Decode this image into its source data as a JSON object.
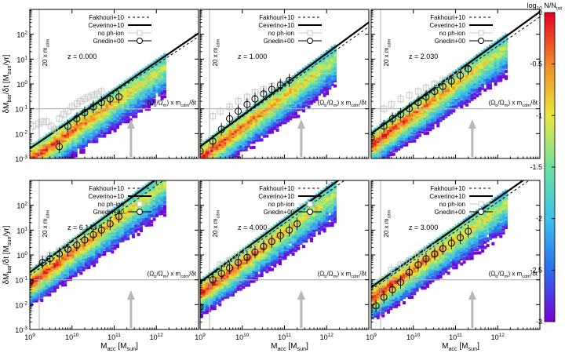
{
  "figure": {
    "xlabel": "M<sub>acc</sub> [M<sub>sun</sub>]",
    "ylabel": "δM<sub>bar</sub>/δt [M<sub>sun</sub>/yr]",
    "vline_label": "20 x m<sub>cdm</sub>",
    "hline_label": "(Ω<sub>b</sub>/Ω<sub>m</sub>) x m<sub>cdm</sub>/δt",
    "x_tick_labels": [
      "10^9",
      "10^10",
      "10^11",
      "10^12"
    ],
    "y_tick_labels": [
      "10^-3",
      "10^-2",
      "10^-1",
      "10^0",
      "10^1",
      "10^2"
    ],
    "xlim": [
      1000000000.0,
      10000000000000.0
    ],
    "ylim": [
      0.001,
      1000.0
    ],
    "xscale": "log",
    "yscale": "log"
  },
  "colorbar": {
    "title": "log<sub>10</sub> N/N<sub>tot</sub>",
    "ticks": [
      0,
      -0.5,
      -1,
      -1.5,
      -2,
      -2.5,
      -3
    ],
    "tick_labels": [
      "0",
      "-0.5",
      "-1",
      "-1.5",
      "-2",
      "-2.5",
      "-3"
    ],
    "range": [
      -3,
      0
    ],
    "colors": [
      "#7b00d6",
      "#2a6df0",
      "#3cc2e8",
      "#6fe0a0",
      "#e8e83a",
      "#f08a2a",
      "#e6001e"
    ]
  },
  "legend": [
    {
      "label": "Fakhouri+10",
      "style": "dashed"
    },
    {
      "label": "Ceverino+10",
      "style": "solid-thick"
    },
    {
      "label": "no ph-ion",
      "style": "open-square-grey"
    },
    {
      "label": "Gnedin+00",
      "style": "open-circle-errorbar"
    }
  ],
  "chart_data": [
    {
      "type": "heatmap",
      "redshift_label": "z = 0.000",
      "fakhouri": {
        "x": [
          1000000000.0,
          10000000000000.0
        ],
        "y": [
          0.0025,
          80
        ]
      },
      "ceverino": {
        "x": [
          1000000000.0,
          10000000000000.0
        ],
        "y": [
          0.0025,
          110
        ]
      },
      "hline_y": 0.1,
      "vline_x": 250000000000.0,
      "no_phion": {
        "x": [
          1200000000.0,
          1600000000.0,
          2000000000.0,
          2500000000.0,
          3200000000.0,
          4000000000.0,
          5000000000.0,
          6300000000.0,
          8000000000.0,
          10000000000.0,
          13000000000.0,
          16000000000.0,
          20000000000.0,
          25000000000.0,
          32000000000.0,
          40000000000.0,
          50000000000.0
        ],
        "y": [
          0.02,
          0.025,
          0.03,
          0.03,
          0.02,
          0.015,
          0.04,
          0.06,
          0.08,
          0.12,
          0.16,
          0.2,
          0.25,
          0.3,
          0.35,
          0.4,
          0.5
        ]
      },
      "gnedin": {
        "x": [
          1000000000.0,
          5000000000.0,
          8000000000.0,
          13000000000.0,
          20000000000.0,
          32000000000.0,
          50000000000.0,
          80000000000.0,
          130000000000.0
        ],
        "y": [
          0.0003,
          0.003,
          0.02,
          0.04,
          0.07,
          0.12,
          0.18,
          0.25,
          0.3
        ]
      }
    },
    {
      "type": "heatmap",
      "redshift_label": "z = 1.000",
      "fakhouri": {
        "x": [
          1000000000.0,
          10000000000000.0
        ],
        "y": [
          0.003,
          200
        ]
      },
      "ceverino": {
        "x": [
          1000000000.0,
          10000000000000.0
        ],
        "y": [
          0.003,
          300
        ]
      },
      "hline_y": 0.1,
      "vline_x": 250000000000.0,
      "no_phion": {
        "x": [
          2000000000.0,
          3000000000.0,
          5000000000.0,
          8000000000.0,
          13000000000.0,
          20000000000.0,
          32000000000.0,
          50000000000.0,
          80000000000.0,
          130000000000.0
        ],
        "y": [
          0.05,
          0.08,
          0.12,
          0.2,
          0.3,
          0.45,
          0.6,
          0.8,
          1.0,
          1.3
        ]
      },
      "gnedin": {
        "x": [
          1000000000.0,
          2000000000.0,
          3200000000.0,
          5000000000.0,
          8000000000.0,
          13000000000.0,
          20000000000.0,
          32000000000.0,
          50000000000.0,
          80000000000.0,
          130000000000.0
        ],
        "y": [
          0.002,
          0.005,
          0.015,
          0.04,
          0.08,
          0.15,
          0.25,
          0.4,
          0.6,
          0.9,
          1.4
        ]
      }
    },
    {
      "type": "heatmap",
      "redshift_label": "z = 2.030",
      "fakhouri": {
        "x": [
          1000000000.0,
          10000000000000.0
        ],
        "y": [
          0.01,
          500
        ]
      },
      "ceverino": {
        "x": [
          1000000000.0,
          10000000000000.0
        ],
        "y": [
          0.01,
          800
        ]
      },
      "hline_y": 0.1,
      "vline_x": 250000000000.0,
      "no_phion": {
        "x": [
          2000000000.0,
          3000000000.0,
          5000000000.0,
          8000000000.0,
          13000000000.0,
          20000000000.0,
          32000000000.0,
          50000000000.0,
          80000000000.0,
          130000000000.0
        ],
        "y": [
          0.1,
          0.15,
          0.25,
          0.35,
          0.5,
          0.7,
          1.0,
          1.4,
          2.0,
          2.8
        ]
      },
      "gnedin": {
        "x": [
          1000000000.0,
          2000000000.0,
          3200000000.0,
          5000000000.0,
          8000000000.0,
          13000000000.0,
          20000000000.0,
          32000000000.0,
          50000000000.0,
          80000000000.0,
          130000000000.0,
          200000000000.0
        ],
        "y": [
          0.007,
          0.02,
          0.04,
          0.06,
          0.1,
          0.18,
          0.3,
          0.5,
          0.8,
          1.3,
          2.2,
          4.0
        ]
      }
    },
    {
      "type": "heatmap",
      "redshift_label": "z = 6.143",
      "fakhouri": {
        "x": [
          1000000000.0,
          10000000000000.0
        ],
        "y": [
          0.15,
          10000.0
        ]
      },
      "ceverino": {
        "x": [
          1000000000.0,
          10000000000000.0
        ],
        "y": [
          0.2,
          20000.0
        ]
      },
      "hline_y": 0.1,
      "vline_x": 250000000000.0,
      "no_phion": {
        "x": [
          2000000000.0,
          3000000000.0,
          5000000000.0,
          8000000000.0,
          13000000000.0,
          20000000000.0
        ],
        "y": [
          0.7,
          1.0,
          1.5,
          2.2,
          3.2,
          4.5
        ]
      },
      "gnedin": {
        "x": [
          1000000000.0,
          2000000000.0,
          3000000000.0,
          5000000000.0,
          8000000000.0,
          13000000000.0,
          20000000000.0,
          32000000000.0,
          50000000000.0,
          80000000000.0,
          130000000000.0
        ],
        "y": [
          0.08,
          0.5,
          0.7,
          1.1,
          1.7,
          2.5,
          4.0,
          6.5,
          10,
          18,
          35
        ]
      }
    },
    {
      "type": "heatmap",
      "redshift_label": "z = 4.000",
      "fakhouri": {
        "x": [
          1000000000.0,
          10000000000000.0
        ],
        "y": [
          0.07,
          5000.0
        ]
      },
      "ceverino": {
        "x": [
          1000000000.0,
          10000000000000.0
        ],
        "y": [
          0.08,
          8000.0
        ]
      },
      "hline_y": 0.1,
      "vline_x": 250000000000.0,
      "no_phion": {
        "x": [
          3000000000.0,
          5000000000.0,
          8000000000.0,
          13000000000.0,
          20000000000.0,
          32000000000.0
        ],
        "y": [
          0.4,
          0.6,
          0.9,
          1.3,
          2.0,
          3.0
        ]
      },
      "gnedin": {
        "x": [
          1000000000.0,
          2000000000.0,
          3200000000.0,
          5000000000.0,
          8000000000.0,
          13000000000.0,
          20000000000.0,
          32000000000.0,
          50000000000.0,
          80000000000.0,
          130000000000.0,
          200000000000.0
        ],
        "y": [
          0.008,
          0.1,
          0.18,
          0.3,
          0.5,
          0.8,
          1.3,
          2.2,
          3.5,
          6.0,
          10,
          18
        ]
      }
    },
    {
      "type": "heatmap",
      "redshift_label": "z = 3.000",
      "fakhouri": {
        "x": [
          1000000000.0,
          10000000000000.0
        ],
        "y": [
          0.04,
          2000.0
        ]
      },
      "ceverino": {
        "x": [
          1000000000.0,
          10000000000000.0
        ],
        "y": [
          0.05,
          3000.0
        ]
      },
      "hline_y": 0.1,
      "vline_x": 250000000000.0,
      "no_phion": {
        "x": [
          3000000000.0,
          5000000000.0,
          8000000000.0,
          13000000000.0,
          20000000000.0,
          32000000000.0
        ],
        "y": [
          0.25,
          0.4,
          0.6,
          0.9,
          1.3,
          2.0
        ]
      },
      "gnedin": {
        "x": [
          1300000000.0,
          2000000000.0,
          3200000000.0,
          5000000000.0,
          8000000000.0,
          13000000000.0,
          20000000000.0,
          32000000000.0,
          50000000000.0,
          80000000000.0,
          130000000000.0,
          200000000000.0
        ],
        "y": [
          0.009,
          0.02,
          0.04,
          0.08,
          0.2,
          0.4,
          0.7,
          1.1,
          1.8,
          3.0,
          5.0,
          9.0
        ]
      }
    }
  ]
}
